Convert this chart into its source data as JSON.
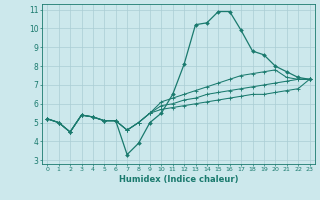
{
  "xlabel": "Humidex (Indice chaleur)",
  "background_color": "#cce8ec",
  "grid_color": "#aacdd4",
  "line_color": "#1a7a6e",
  "xlim": [
    -0.5,
    23.5
  ],
  "ylim": [
    2.8,
    11.3
  ],
  "xticks": [
    0,
    1,
    2,
    3,
    4,
    5,
    6,
    7,
    8,
    9,
    10,
    11,
    12,
    13,
    14,
    15,
    16,
    17,
    18,
    19,
    20,
    21,
    22,
    23
  ],
  "yticks": [
    3,
    4,
    5,
    6,
    7,
    8,
    9,
    10,
    11
  ],
  "series": [
    [
      5.2,
      5.0,
      4.5,
      5.4,
      5.3,
      5.1,
      5.1,
      3.3,
      3.9,
      5.0,
      5.5,
      6.5,
      8.1,
      10.2,
      10.3,
      10.9,
      10.9,
      9.9,
      8.8,
      8.6,
      8.0,
      7.7,
      7.4,
      7.3
    ],
    [
      5.2,
      5.0,
      4.5,
      5.4,
      5.3,
      5.1,
      5.1,
      4.6,
      5.0,
      5.5,
      6.1,
      6.3,
      6.5,
      6.7,
      6.9,
      7.1,
      7.3,
      7.5,
      7.6,
      7.7,
      7.8,
      7.4,
      7.3,
      7.3
    ],
    [
      5.2,
      5.0,
      4.5,
      5.4,
      5.3,
      5.1,
      5.1,
      4.6,
      5.0,
      5.5,
      5.9,
      6.0,
      6.2,
      6.3,
      6.5,
      6.6,
      6.7,
      6.8,
      6.9,
      7.0,
      7.1,
      7.2,
      7.3,
      7.3
    ],
    [
      5.2,
      5.0,
      4.5,
      5.4,
      5.3,
      5.1,
      5.1,
      4.6,
      5.0,
      5.5,
      5.7,
      5.8,
      5.9,
      6.0,
      6.1,
      6.2,
      6.3,
      6.4,
      6.5,
      6.5,
      6.6,
      6.7,
      6.8,
      7.3
    ]
  ],
  "main_series_idx": 0
}
